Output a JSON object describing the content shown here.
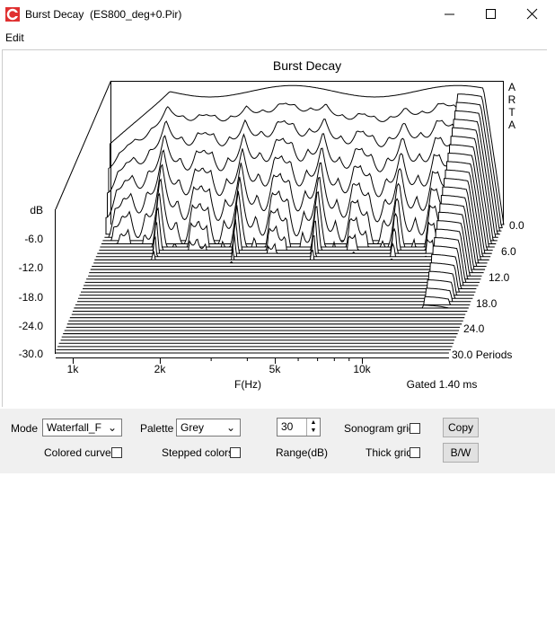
{
  "window": {
    "title": "Burst Decay  (ES800_deg+0.Pir)"
  },
  "menu": [
    "Edit"
  ],
  "chart": {
    "title": "Burst Decay",
    "brand": [
      "A",
      "R",
      "T",
      "A"
    ],
    "y_axis_label": "dB",
    "y_ticks": [
      "-6.0",
      "-12.0",
      "-18.0",
      "-24.0",
      "-30.0"
    ],
    "depth_ticks": [
      "0.0",
      "6.0",
      "12.0",
      "18.0",
      "24.0",
      "30.0 Periods"
    ],
    "x_ticks": [
      "1k",
      "2k",
      "5k",
      "10k"
    ],
    "x_axis_label": "F(Hz)",
    "note": "Gated 1.40 ms"
  },
  "controls": {
    "mode_label": "Mode",
    "mode_value": "Waterfall_F",
    "palette_label": "Palette",
    "palette_value": "Grey",
    "range_value": "30",
    "range_label": "Range(dB)",
    "sonogram_grid": "Sonogram grid",
    "copy": "Copy",
    "colored_curves": "Colored curves",
    "stepped_colors": "Stepped colors",
    "thick_grid": "Thick grid",
    "bw": "B/W"
  }
}
